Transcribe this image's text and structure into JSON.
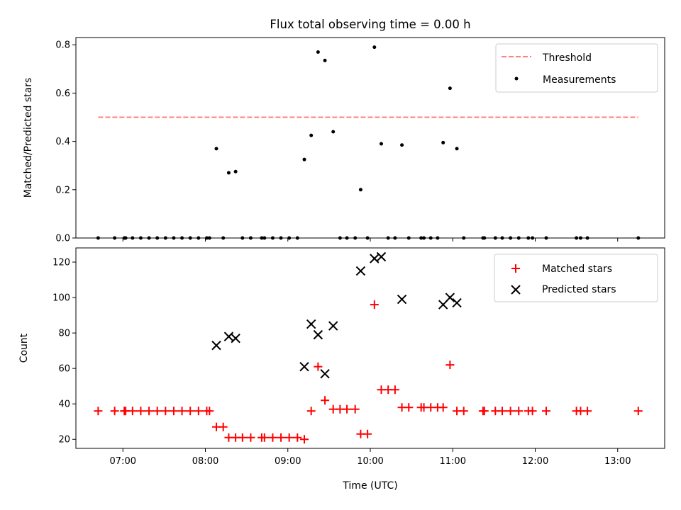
{
  "chart_data": [
    {
      "type": "scatter",
      "title": "Flux total observing time = 0.00 h",
      "xlabel": "",
      "ylabel": "Matched/Predicted stars",
      "ylim": [
        0,
        0.83
      ],
      "yticks": [
        0.0,
        0.2,
        0.4,
        0.6,
        0.8
      ],
      "ytick_labels": [
        "0.0",
        "0.2",
        "0.4",
        "0.6",
        "0.8"
      ],
      "xlim_hours": [
        6.43,
        13.57
      ],
      "legend": {
        "placement": "top-right",
        "entries": [
          "Threshold",
          "Measurements"
        ]
      },
      "threshold": {
        "name": "Threshold",
        "value": 0.5,
        "x_range": [
          "06:42",
          "13:15"
        ],
        "color": "#ff7f7f",
        "style": "dashed"
      },
      "series": [
        {
          "name": "Measurements",
          "color": "#000000",
          "points": [
            [
              "06:42",
              0
            ],
            [
              "06:54",
              0
            ],
            [
              "07:01",
              0
            ],
            [
              "07:02",
              0
            ],
            [
              "07:07",
              0
            ],
            [
              "07:13",
              0
            ],
            [
              "07:19",
              0
            ],
            [
              "07:25",
              0
            ],
            [
              "07:31",
              0
            ],
            [
              "07:37",
              0
            ],
            [
              "07:43",
              0
            ],
            [
              "07:49",
              0
            ],
            [
              "07:55",
              0
            ],
            [
              "08:01",
              0
            ],
            [
              "08:03",
              0
            ],
            [
              "08:08",
              0.37
            ],
            [
              "08:13",
              0
            ],
            [
              "08:17",
              0.27
            ],
            [
              "08:22",
              0.275
            ],
            [
              "08:27",
              0
            ],
            [
              "08:33",
              0
            ],
            [
              "08:41",
              0
            ],
            [
              "08:43",
              0
            ],
            [
              "08:49",
              0
            ],
            [
              "08:55",
              0
            ],
            [
              "09:01",
              0
            ],
            [
              "09:07",
              0
            ],
            [
              "09:12",
              0.325
            ],
            [
              "09:17",
              0.425
            ],
            [
              "09:22",
              0.77
            ],
            [
              "09:27",
              0.735
            ],
            [
              "09:33",
              0.44
            ],
            [
              "09:38",
              0
            ],
            [
              "09:43",
              0
            ],
            [
              "09:49",
              0
            ],
            [
              "09:53",
              0.2
            ],
            [
              "09:58",
              0
            ],
            [
              "10:03",
              0.79
            ],
            [
              "10:08",
              0.39
            ],
            [
              "10:13",
              0
            ],
            [
              "10:18",
              0
            ],
            [
              "10:23",
              0.385
            ],
            [
              "10:28",
              0
            ],
            [
              "10:37",
              0
            ],
            [
              "10:39",
              0
            ],
            [
              "10:44",
              0
            ],
            [
              "10:49",
              0
            ],
            [
              "10:53",
              0.395
            ],
            [
              "10:58",
              0.62
            ],
            [
              "11:03",
              0.37
            ],
            [
              "11:08",
              0
            ],
            [
              "11:22",
              0
            ],
            [
              "11:23",
              0
            ],
            [
              "11:31",
              0
            ],
            [
              "11:36",
              0
            ],
            [
              "11:42",
              0
            ],
            [
              "11:48",
              0
            ],
            [
              "11:55",
              0
            ],
            [
              "11:58",
              0
            ],
            [
              "12:08",
              0
            ],
            [
              "12:30",
              0
            ],
            [
              "12:33",
              0
            ],
            [
              "12:38",
              0
            ],
            [
              "13:15",
              0
            ]
          ]
        }
      ]
    },
    {
      "type": "scatter",
      "title": "",
      "xlabel": "Time (UTC)",
      "ylabel": "Count",
      "ylim": [
        14.9,
        128
      ],
      "yticks": [
        20,
        40,
        60,
        80,
        100,
        120
      ],
      "ytick_labels": [
        "20",
        "40",
        "60",
        "80",
        "100",
        "120"
      ],
      "xlim_hours": [
        6.43,
        13.57
      ],
      "xticks": [
        "07:00",
        "08:00",
        "09:00",
        "10:00",
        "11:00",
        "12:00",
        "13:00"
      ],
      "xtick_labels": [
        "07:00",
        "08:00",
        "09:00",
        "10:00",
        "11:00",
        "12:00",
        "13:00"
      ],
      "legend": {
        "placement": "top-right",
        "entries": [
          "Matched stars",
          "Predicted stars"
        ]
      },
      "series": [
        {
          "name": "Matched stars",
          "marker": "plus",
          "color": "#ff0000",
          "points": [
            [
              "06:42",
              36
            ],
            [
              "06:54",
              36
            ],
            [
              "07:01",
              36
            ],
            [
              "07:02",
              36
            ],
            [
              "07:07",
              36
            ],
            [
              "07:13",
              36
            ],
            [
              "07:19",
              36
            ],
            [
              "07:25",
              36
            ],
            [
              "07:31",
              36
            ],
            [
              "07:37",
              36
            ],
            [
              "07:43",
              36
            ],
            [
              "07:49",
              36
            ],
            [
              "07:55",
              36
            ],
            [
              "08:01",
              36
            ],
            [
              "08:03",
              36
            ],
            [
              "08:08",
              27
            ],
            [
              "08:13",
              27
            ],
            [
              "08:17",
              21
            ],
            [
              "08:22",
              21
            ],
            [
              "08:27",
              21
            ],
            [
              "08:33",
              21
            ],
            [
              "08:41",
              21
            ],
            [
              "08:43",
              21
            ],
            [
              "08:49",
              21
            ],
            [
              "08:55",
              21
            ],
            [
              "09:01",
              21
            ],
            [
              "09:07",
              21
            ],
            [
              "09:12",
              20
            ],
            [
              "09:17",
              36
            ],
            [
              "09:22",
              61
            ],
            [
              "09:27",
              42
            ],
            [
              "09:33",
              37
            ],
            [
              "09:38",
              37
            ],
            [
              "09:43",
              37
            ],
            [
              "09:49",
              37
            ],
            [
              "09:53",
              23
            ],
            [
              "09:58",
              23
            ],
            [
              "10:03",
              96
            ],
            [
              "10:08",
              48
            ],
            [
              "10:13",
              48
            ],
            [
              "10:18",
              48
            ],
            [
              "10:23",
              38
            ],
            [
              "10:28",
              38
            ],
            [
              "10:37",
              38
            ],
            [
              "10:39",
              38
            ],
            [
              "10:44",
              38
            ],
            [
              "10:49",
              38
            ],
            [
              "10:53",
              38
            ],
            [
              "10:58",
              62
            ],
            [
              "11:03",
              36
            ],
            [
              "11:08",
              36
            ],
            [
              "11:22",
              36
            ],
            [
              "11:23",
              36
            ],
            [
              "11:31",
              36
            ],
            [
              "11:36",
              36
            ],
            [
              "11:42",
              36
            ],
            [
              "11:48",
              36
            ],
            [
              "11:55",
              36
            ],
            [
              "11:58",
              36
            ],
            [
              "12:08",
              36
            ],
            [
              "12:30",
              36
            ],
            [
              "12:33",
              36
            ],
            [
              "12:38",
              36
            ],
            [
              "13:15",
              36
            ]
          ]
        },
        {
          "name": "Predicted stars",
          "marker": "x",
          "color": "#000000",
          "points": [
            [
              "08:08",
              73
            ],
            [
              "08:17",
              78
            ],
            [
              "08:22",
              77
            ],
            [
              "09:12",
              61
            ],
            [
              "09:17",
              85
            ],
            [
              "09:22",
              79
            ],
            [
              "09:27",
              57
            ],
            [
              "09:33",
              84
            ],
            [
              "09:53",
              115
            ],
            [
              "10:03",
              122
            ],
            [
              "10:08",
              123
            ],
            [
              "10:23",
              99
            ],
            [
              "10:53",
              96
            ],
            [
              "10:58",
              100
            ],
            [
              "11:03",
              97
            ]
          ]
        }
      ]
    }
  ]
}
